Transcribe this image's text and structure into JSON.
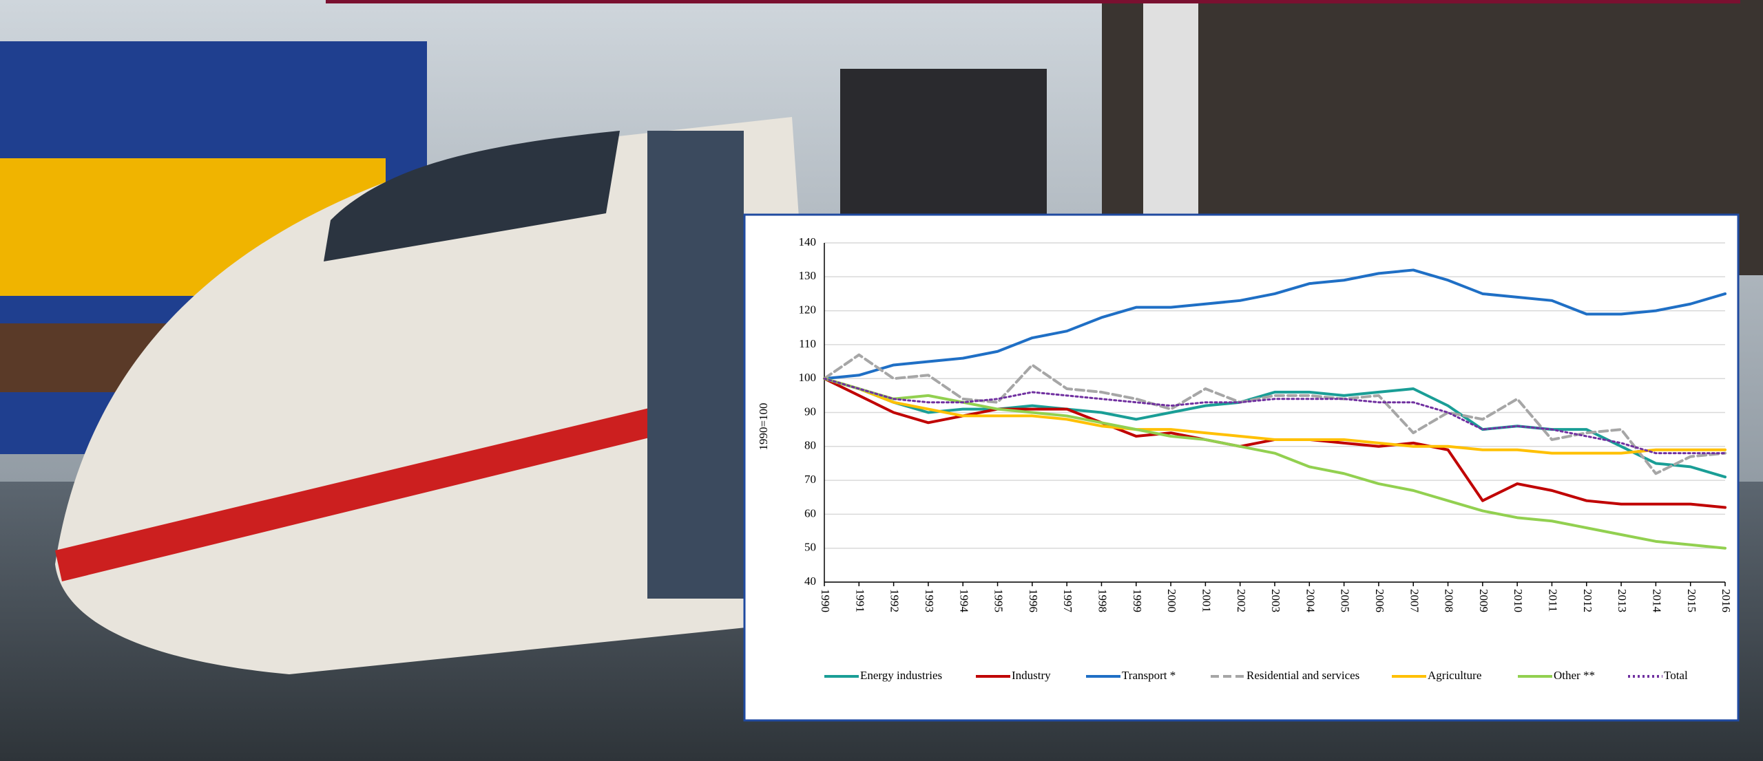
{
  "chart_data": {
    "type": "line",
    "y_label": "1990=100",
    "categories": [
      "1990",
      "1991",
      "1992",
      "1993",
      "1994",
      "1995",
      "1996",
      "1997",
      "1998",
      "1999",
      "2000",
      "2001",
      "2002",
      "2003",
      "2004",
      "2005",
      "2006",
      "2007",
      "2008",
      "2009",
      "2010",
      "2011",
      "2012",
      "2013",
      "2014",
      "2015",
      "2016"
    ],
    "ylim": [
      40,
      140
    ],
    "yticks": [
      40,
      50,
      60,
      70,
      80,
      90,
      100,
      110,
      120,
      130,
      140
    ],
    "grid": true,
    "legend": "bottom",
    "series": [
      {
        "name": "Energy industries",
        "color": "#1a9e96",
        "dash": "solid",
        "values": [
          100,
          97,
          93,
          90,
          91,
          91,
          92,
          91,
          90,
          88,
          90,
          92,
          93,
          96,
          96,
          95,
          96,
          97,
          92,
          85,
          86,
          85,
          85,
          80,
          75,
          74,
          71
        ]
      },
      {
        "name": "Industry",
        "color": "#c00000",
        "dash": "solid",
        "values": [
          100,
          95,
          90,
          87,
          89,
          91,
          91,
          91,
          87,
          83,
          84,
          82,
          80,
          82,
          82,
          81,
          80,
          81,
          79,
          64,
          69,
          67,
          64,
          63,
          63,
          63,
          62
        ]
      },
      {
        "name": "Transport *",
        "color": "#1f6fc5",
        "dash": "solid",
        "values": [
          100,
          101,
          104,
          105,
          106,
          108,
          112,
          114,
          118,
          121,
          121,
          122,
          123,
          125,
          128,
          129,
          131,
          132,
          129,
          125,
          124,
          123,
          119,
          119,
          120,
          122,
          125
        ]
      },
      {
        "name": "Residential and services",
        "color": "#a6a6a6",
        "dash": "dashed",
        "values": [
          100,
          107,
          100,
          101,
          94,
          93,
          104,
          97,
          96,
          94,
          91,
          97,
          93,
          95,
          95,
          94,
          95,
          84,
          90,
          88,
          94,
          82,
          84,
          85,
          72,
          77,
          78
        ]
      },
      {
        "name": "Agriculture",
        "color": "#ffc000",
        "dash": "solid",
        "values": [
          100,
          97,
          93,
          91,
          89,
          89,
          89,
          88,
          86,
          85,
          85,
          84,
          83,
          82,
          82,
          82,
          81,
          80,
          80,
          79,
          79,
          78,
          78,
          78,
          79,
          79,
          79
        ]
      },
      {
        "name": "Other **",
        "color": "#92d050",
        "dash": "solid",
        "values": [
          100,
          97,
          94,
          95,
          93,
          91,
          90,
          89,
          87,
          85,
          83,
          82,
          80,
          78,
          74,
          72,
          69,
          67,
          64,
          61,
          59,
          58,
          56,
          54,
          52,
          51,
          50
        ]
      },
      {
        "name": "Total",
        "color": "#7030a0",
        "dash": "dotted",
        "values": [
          100,
          97,
          94,
          93,
          93,
          94,
          96,
          95,
          94,
          93,
          92,
          93,
          93,
          94,
          94,
          94,
          93,
          93,
          90,
          85,
          86,
          85,
          83,
          81,
          78,
          78,
          78
        ]
      }
    ]
  }
}
